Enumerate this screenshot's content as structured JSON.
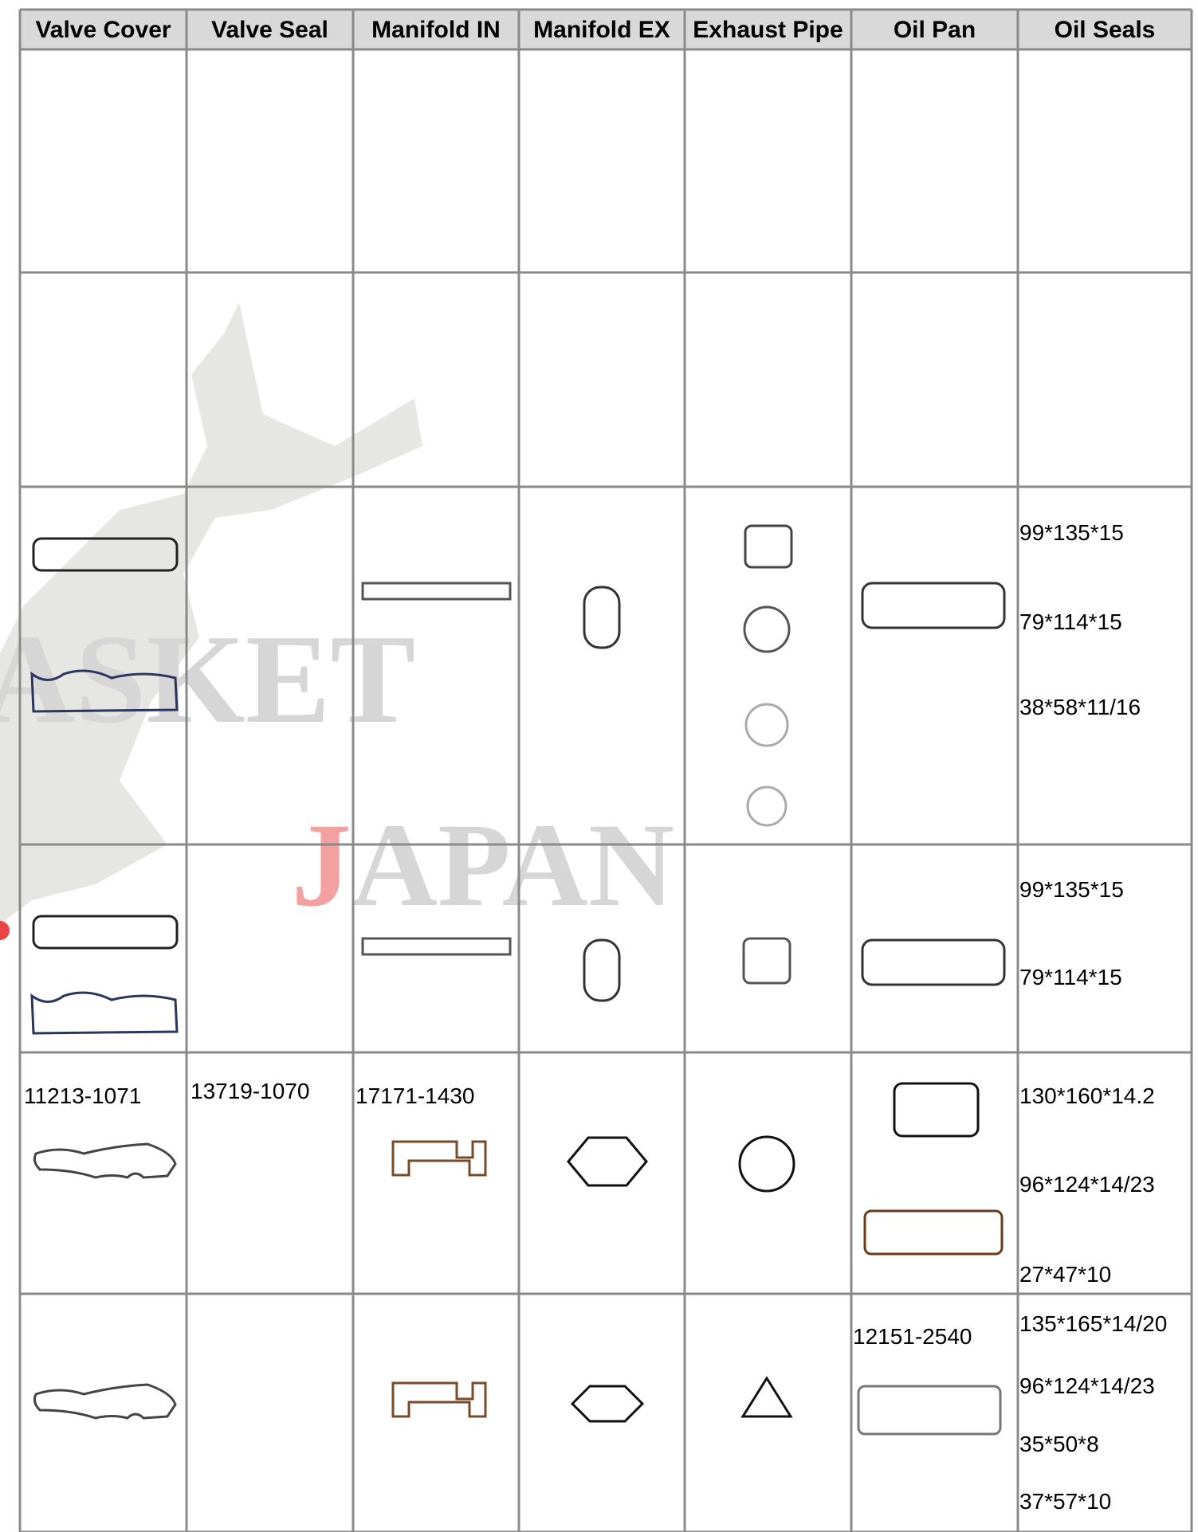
{
  "watermark": {
    "word": "ASKET",
    "country": "JAPAN"
  },
  "table": {
    "header": [
      "Valve Cover",
      "Valve Seal",
      "Manifold IN",
      "Manifold EX",
      "Exhaust Pipe",
      "Oil Pan",
      "Oil Seals"
    ],
    "rows": [
      {},
      {},
      {
        "oil_seals": [
          "99*135*15",
          "79*114*15",
          "38*58*11/16"
        ]
      },
      {
        "oil_seals": [
          "99*135*15",
          "79*114*15"
        ]
      },
      {
        "valve_cover": "11213-1071",
        "valve_seal": "13719-1070",
        "manifold_in": "17171-1430",
        "oil_seals": [
          "130*160*14.2",
          "96*124*14/23",
          "27*47*10"
        ]
      },
      {
        "oil_pan": "12151-2540",
        "oil_seals": [
          "135*165*14/20",
          "96*124*14/23",
          "35*50*8",
          "37*57*10"
        ]
      }
    ]
  }
}
